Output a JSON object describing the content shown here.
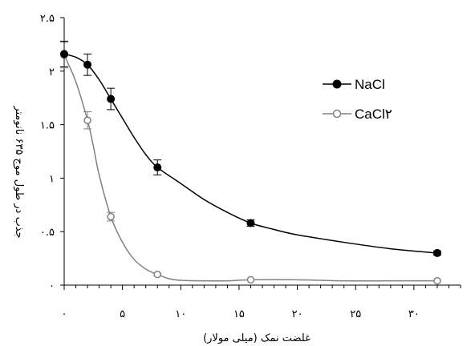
{
  "chart_data": {
    "type": "line",
    "xlabel": "غلضت نمک (میلی مولار)",
    "ylabel": "جذب در طول موج ۶۳۵ نانومتر",
    "xlim": [
      0,
      34
    ],
    "ylim": [
      0,
      2.5
    ],
    "x_ticks": [
      {
        "value": 0,
        "label": "۰"
      },
      {
        "value": 5,
        "label": "۵"
      },
      {
        "value": 10,
        "label": "۱۰"
      },
      {
        "value": 15,
        "label": "۱۵"
      },
      {
        "value": 20,
        "label": "۲۰"
      },
      {
        "value": 25,
        "label": "۲۵"
      },
      {
        "value": 30,
        "label": "۳۰"
      }
    ],
    "y_ticks": [
      {
        "value": 0,
        "label": "۰"
      },
      {
        "value": 0.5,
        "label": "۰.۵"
      },
      {
        "value": 1,
        "label": "۱"
      },
      {
        "value": 1.5,
        "label": "۱.۵"
      },
      {
        "value": 2,
        "label": "۲"
      },
      {
        "value": 2.5,
        "label": "۲.۵"
      }
    ],
    "legend_position": "upper-right",
    "series": [
      {
        "name": "NaCl",
        "color": "#000000",
        "marker": "filled-circle",
        "points": [
          {
            "x": 0,
            "y": 2.16,
            "err": 0.12
          },
          {
            "x": 2,
            "y": 2.06,
            "err": 0.1
          },
          {
            "x": 4,
            "y": 1.74,
            "err": 0.1
          },
          {
            "x": 8,
            "y": 1.1,
            "err": 0.07
          },
          {
            "x": 16,
            "y": 0.58,
            "err": 0.03
          },
          {
            "x": 32,
            "y": 0.3,
            "err": 0.02
          }
        ],
        "curve": [
          [
            0,
            2.16
          ],
          [
            1,
            2.13
          ],
          [
            2,
            2.06
          ],
          [
            3,
            1.92
          ],
          [
            4,
            1.74
          ],
          [
            5,
            1.56
          ],
          [
            6,
            1.38
          ],
          [
            7,
            1.22
          ],
          [
            8,
            1.1
          ],
          [
            10,
            0.95
          ],
          [
            12,
            0.8
          ],
          [
            14,
            0.68
          ],
          [
            16,
            0.58
          ],
          [
            18,
            0.52
          ],
          [
            20,
            0.47
          ],
          [
            24,
            0.4
          ],
          [
            28,
            0.34
          ],
          [
            32,
            0.3
          ]
        ]
      },
      {
        "name": "CaCl۲",
        "color": "#808080",
        "marker": "open-circle",
        "points": [
          {
            "x": 0,
            "y": 2.15,
            "err": 0.12
          },
          {
            "x": 2,
            "y": 1.54,
            "err": 0.08
          },
          {
            "x": 4,
            "y": 0.64,
            "err": 0.04
          },
          {
            "x": 8,
            "y": 0.1,
            "err": 0.01
          },
          {
            "x": 16,
            "y": 0.05,
            "err": 0.0
          },
          {
            "x": 32,
            "y": 0.04,
            "err": 0.0
          }
        ],
        "curve": [
          [
            0,
            2.15
          ],
          [
            1,
            1.9
          ],
          [
            2,
            1.54
          ],
          [
            2.5,
            1.3
          ],
          [
            3,
            1.03
          ],
          [
            4,
            0.64
          ],
          [
            5,
            0.4
          ],
          [
            6,
            0.24
          ],
          [
            7,
            0.15
          ],
          [
            8,
            0.1
          ],
          [
            9,
            0.06
          ],
          [
            10,
            0.045
          ],
          [
            12,
            0.04
          ],
          [
            14,
            0.04
          ],
          [
            16,
            0.05
          ],
          [
            20,
            0.05
          ],
          [
            24,
            0.04
          ],
          [
            28,
            0.04
          ],
          [
            32,
            0.04
          ]
        ]
      }
    ]
  }
}
